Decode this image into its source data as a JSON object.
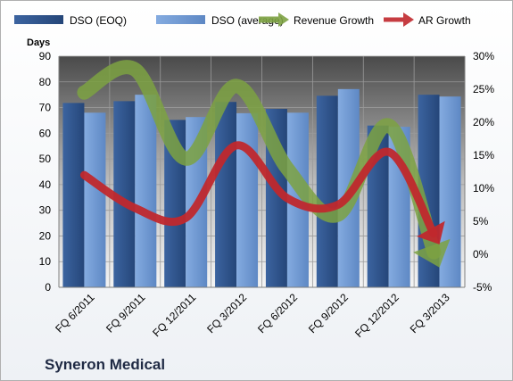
{
  "chart_data": {
    "type": "bar",
    "title": "",
    "footer_label": "Syneron Medical",
    "ylabel": "Days",
    "y2label": "",
    "ylim": [
      0,
      90
    ],
    "y_ticks": [
      0,
      10,
      20,
      30,
      40,
      50,
      60,
      70,
      80,
      90
    ],
    "y2lim": [
      -5,
      30
    ],
    "y2_ticks": [
      "-5%",
      "0%",
      "5%",
      "10%",
      "15%",
      "20%",
      "25%",
      "30%"
    ],
    "y2_tick_values": [
      -5,
      0,
      5,
      10,
      15,
      20,
      25,
      30
    ],
    "grid": true,
    "legend_position": "top",
    "categories": [
      "FQ 6/2011",
      "FQ 9/2011",
      "FQ 12/2011",
      "FQ 3/2012",
      "FQ 6/2012",
      "FQ 9/2012",
      "FQ 12/2012",
      "FQ 3/2013"
    ],
    "series": [
      {
        "name": "DSO (EOQ)",
        "kind": "bar",
        "axis": "left",
        "color": "#2e5287",
        "values": [
          71.8,
          72.5,
          65.2,
          72.2,
          69.5,
          74.6,
          63.0,
          75.0
        ]
      },
      {
        "name": "DSO (average)",
        "kind": "bar",
        "axis": "left",
        "color": "#6f99d4",
        "values": [
          68.0,
          75.0,
          66.3,
          67.8,
          68.0,
          77.2,
          62.5,
          74.3
        ]
      },
      {
        "name": "Revenue Growth",
        "kind": "line",
        "axis": "right",
        "color": "#7da242",
        "values": [
          24.5,
          28.0,
          14.5,
          25.5,
          13.0,
          6.0,
          19.5,
          -2.0
        ]
      },
      {
        "name": "AR Growth",
        "kind": "line",
        "axis": "right",
        "color": "#c0282d",
        "values": [
          12.0,
          7.0,
          5.5,
          16.5,
          8.5,
          7.5,
          15.5,
          1.5
        ]
      }
    ]
  }
}
